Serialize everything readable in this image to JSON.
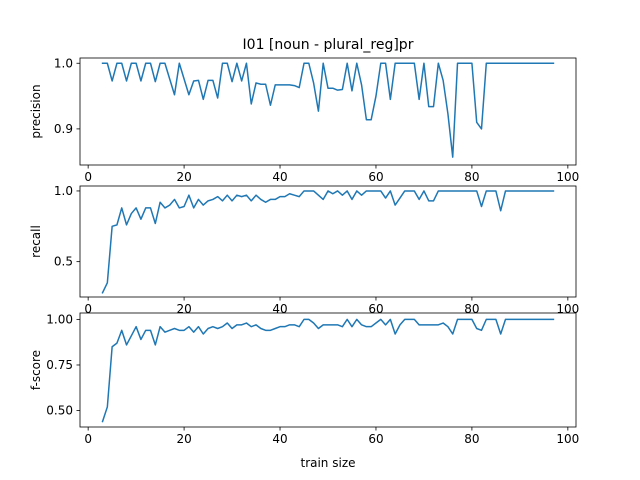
{
  "chart_data": [
    {
      "type": "line",
      "title": "I01 [noun - plural_reg]pr",
      "xlabel": "",
      "ylabel": "precision",
      "xlim": [
        -1.7,
        101.7
      ],
      "ylim": [
        0.845,
        1.008
      ],
      "xticks": [
        0,
        20,
        40,
        60,
        80,
        100
      ],
      "xtick_labels": [
        "0",
        "20",
        "40",
        "60",
        "80",
        "100"
      ],
      "yticks": [
        0.9,
        1.0
      ],
      "ytick_labels": [
        "0.9",
        "1.0"
      ],
      "grid": false,
      "series": [
        {
          "color": "#1f77b4",
          "x": [
            3,
            4,
            5,
            6,
            7,
            8,
            9,
            10,
            11,
            12,
            13,
            14,
            15,
            16,
            17,
            18,
            19,
            20,
            21,
            22,
            23,
            24,
            25,
            26,
            27,
            28,
            29,
            30,
            31,
            32,
            33,
            34,
            35,
            36,
            37,
            38,
            39,
            40,
            41,
            42,
            43,
            44,
            45,
            46,
            47,
            48,
            49,
            50,
            51,
            52,
            53,
            54,
            55,
            56,
            57,
            58,
            59,
            60,
            61,
            62,
            63,
            64,
            65,
            66,
            67,
            68,
            69,
            70,
            71,
            72,
            73,
            74,
            75,
            76,
            77,
            78,
            79,
            80,
            81,
            82,
            83,
            84,
            85,
            86,
            87,
            88,
            89,
            90,
            91,
            92,
            93,
            94,
            95,
            96,
            97
          ],
          "y": [
            1.0,
            1.0,
            0.973,
            1.0,
            1.0,
            0.973,
            1.0,
            1.0,
            0.973,
            1.0,
            1.0,
            0.972,
            1.0,
            1.0,
            0.976,
            0.952,
            1.0,
            0.976,
            0.952,
            0.973,
            0.974,
            0.945,
            0.974,
            0.974,
            0.947,
            1.0,
            1.0,
            0.972,
            1.0,
            0.973,
            1.0,
            0.938,
            0.97,
            0.968,
            0.968,
            0.936,
            0.967,
            0.967,
            0.967,
            0.967,
            0.966,
            0.963,
            1.0,
            1.0,
            0.97,
            0.927,
            1.0,
            0.962,
            0.962,
            0.959,
            0.96,
            1.0,
            0.958,
            1.0,
            0.967,
            0.914,
            0.914,
            0.95,
            1.0,
            1.0,
            0.945,
            1.0,
            1.0,
            1.0,
            1.0,
            1.0,
            0.945,
            1.0,
            0.934,
            0.934,
            1.0,
            0.974,
            0.923,
            0.857,
            1.0,
            1.0,
            1.0,
            1.0,
            0.91,
            0.9,
            1.0,
            1.0,
            1.0,
            1.0,
            1.0,
            1.0,
            1.0,
            1.0,
            1.0,
            1.0,
            1.0,
            1.0,
            1.0,
            1.0,
            1.0
          ]
        }
      ]
    },
    {
      "type": "line",
      "title": "",
      "xlabel": "",
      "ylabel": "recall",
      "xlim": [
        -1.7,
        101.7
      ],
      "ylim": [
        0.25,
        1.035
      ],
      "xticks": [
        0,
        20,
        40,
        60,
        80,
        100
      ],
      "xtick_labels": [
        "0",
        "20",
        "40",
        "60",
        "80",
        "100"
      ],
      "yticks": [
        0.5,
        1.0
      ],
      "ytick_labels": [
        "0.5",
        "1.0"
      ],
      "grid": false,
      "series": [
        {
          "color": "#1f77b4",
          "x": [
            3,
            4,
            5,
            6,
            7,
            8,
            9,
            10,
            11,
            12,
            13,
            14,
            15,
            16,
            17,
            18,
            19,
            20,
            21,
            22,
            23,
            24,
            25,
            26,
            27,
            28,
            29,
            30,
            31,
            32,
            33,
            34,
            35,
            36,
            37,
            38,
            39,
            40,
            41,
            42,
            43,
            44,
            45,
            46,
            47,
            48,
            49,
            50,
            51,
            52,
            53,
            54,
            55,
            56,
            57,
            58,
            59,
            60,
            61,
            62,
            63,
            64,
            65,
            66,
            67,
            68,
            69,
            70,
            71,
            72,
            73,
            74,
            75,
            76,
            77,
            78,
            79,
            80,
            81,
            82,
            83,
            84,
            85,
            86,
            87,
            88,
            89,
            90,
            91,
            92,
            93,
            94,
            95,
            96,
            97
          ],
          "y": [
            0.28,
            0.35,
            0.75,
            0.76,
            0.88,
            0.76,
            0.84,
            0.88,
            0.8,
            0.88,
            0.88,
            0.77,
            0.92,
            0.88,
            0.9,
            0.94,
            0.88,
            0.89,
            0.97,
            0.88,
            0.94,
            0.9,
            0.93,
            0.94,
            0.96,
            0.93,
            0.97,
            0.93,
            0.97,
            0.96,
            0.97,
            0.93,
            0.97,
            0.94,
            0.92,
            0.94,
            0.94,
            0.96,
            0.96,
            0.98,
            0.97,
            0.96,
            1.0,
            1.0,
            1.0,
            0.97,
            0.94,
            1.0,
            0.98,
            1.0,
            0.97,
            1.0,
            0.94,
            1.0,
            0.97,
            1.0,
            1.0,
            1.0,
            1.0,
            0.95,
            1.0,
            0.9,
            0.95,
            1.0,
            1.0,
            1.0,
            0.94,
            1.0,
            0.93,
            0.93,
            1.0,
            1.0,
            1.0,
            1.0,
            1.0,
            1.0,
            1.0,
            1.0,
            1.0,
            0.89,
            1.0,
            1.0,
            1.0,
            0.86,
            1.0,
            1.0,
            1.0,
            1.0,
            1.0,
            1.0,
            1.0,
            1.0,
            1.0,
            1.0,
            1.0
          ]
        }
      ]
    },
    {
      "type": "line",
      "title": "",
      "xlabel": "train size",
      "ylabel": "f-score",
      "xlim": [
        -1.7,
        101.7
      ],
      "ylim": [
        0.41,
        1.035
      ],
      "xticks": [
        0,
        20,
        40,
        60,
        80,
        100
      ],
      "xtick_labels": [
        "0",
        "20",
        "40",
        "60",
        "80",
        "100"
      ],
      "yticks": [
        0.5,
        0.75,
        1.0
      ],
      "ytick_labels": [
        "0.50",
        "0.75",
        "1.00"
      ],
      "grid": false,
      "series": [
        {
          "color": "#1f77b4",
          "x": [
            3,
            4,
            5,
            6,
            7,
            8,
            9,
            10,
            11,
            12,
            13,
            14,
            15,
            16,
            17,
            18,
            19,
            20,
            21,
            22,
            23,
            24,
            25,
            26,
            27,
            28,
            29,
            30,
            31,
            32,
            33,
            34,
            35,
            36,
            37,
            38,
            39,
            40,
            41,
            42,
            43,
            44,
            45,
            46,
            47,
            48,
            49,
            50,
            51,
            52,
            53,
            54,
            55,
            56,
            57,
            58,
            59,
            60,
            61,
            62,
            63,
            64,
            65,
            66,
            67,
            68,
            69,
            70,
            71,
            72,
            73,
            74,
            75,
            76,
            77,
            78,
            79,
            80,
            81,
            82,
            83,
            84,
            85,
            86,
            87,
            88,
            89,
            90,
            91,
            92,
            93,
            94,
            95,
            96,
            97
          ],
          "y": [
            0.44,
            0.52,
            0.85,
            0.87,
            0.94,
            0.86,
            0.91,
            0.96,
            0.89,
            0.94,
            0.94,
            0.86,
            0.96,
            0.93,
            0.94,
            0.95,
            0.94,
            0.94,
            0.96,
            0.93,
            0.96,
            0.92,
            0.95,
            0.96,
            0.95,
            0.96,
            0.98,
            0.95,
            0.97,
            0.97,
            0.98,
            0.96,
            0.97,
            0.95,
            0.94,
            0.94,
            0.95,
            0.96,
            0.96,
            0.97,
            0.97,
            0.96,
            1.0,
            1.0,
            0.98,
            0.95,
            0.97,
            0.97,
            0.97,
            0.97,
            0.96,
            1.0,
            0.96,
            1.0,
            0.97,
            0.96,
            0.96,
            0.98,
            1.0,
            0.97,
            1.0,
            0.92,
            0.97,
            1.0,
            1.0,
            1.0,
            0.97,
            0.97,
            0.97,
            0.97,
            0.97,
            0.98,
            0.96,
            0.92,
            1.0,
            1.0,
            1.0,
            1.0,
            0.95,
            0.94,
            1.0,
            1.0,
            1.0,
            0.92,
            1.0,
            1.0,
            1.0,
            1.0,
            1.0,
            1.0,
            1.0,
            1.0,
            1.0,
            1.0,
            1.0
          ]
        }
      ]
    }
  ]
}
